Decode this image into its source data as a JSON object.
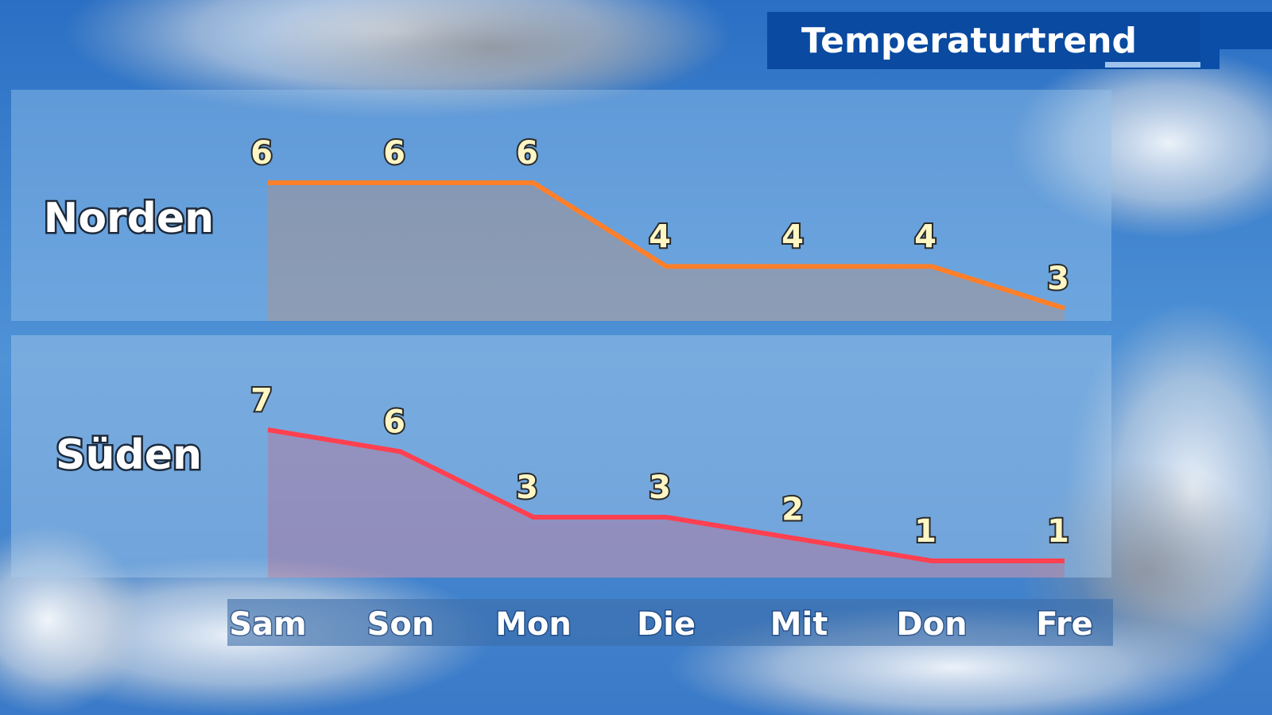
{
  "header": {
    "title": "Temperaturtrend"
  },
  "chart_data": {
    "type": "line",
    "area": true,
    "categories": [
      "Sam",
      "Son",
      "Mon",
      "Die",
      "Mit",
      "Don",
      "Fre"
    ],
    "series": [
      {
        "name": "Norden",
        "color": "#ff7f2a",
        "values": [
          6,
          6,
          6,
          4,
          4,
          4,
          3
        ]
      },
      {
        "name": "Süden",
        "color": "#ff4050",
        "values": [
          7,
          6,
          3,
          3,
          2,
          1,
          1
        ]
      }
    ]
  }
}
